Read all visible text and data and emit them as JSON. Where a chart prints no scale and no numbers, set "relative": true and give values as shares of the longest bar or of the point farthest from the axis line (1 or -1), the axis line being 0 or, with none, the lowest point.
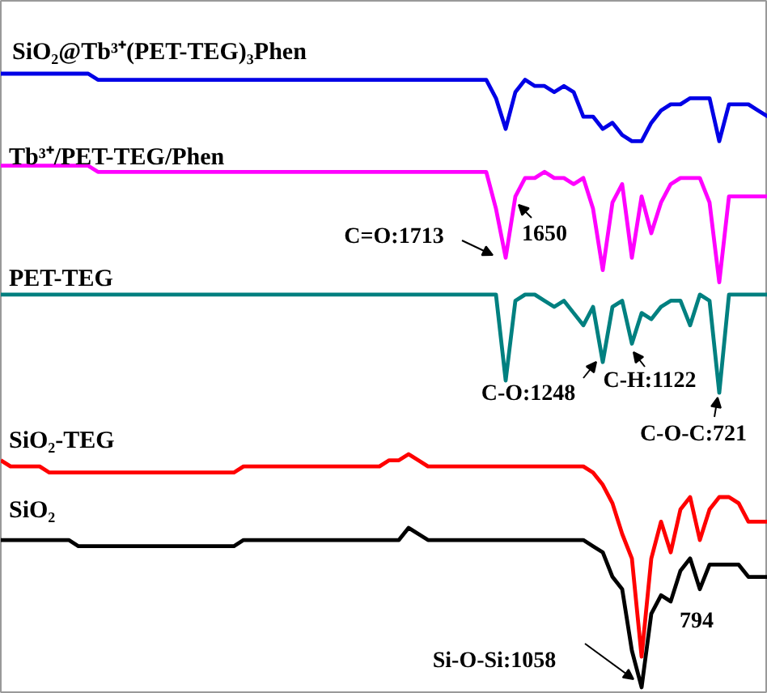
{
  "chart_data": {
    "type": "line",
    "relative": true,
    "grid": false,
    "marker": "none",
    "line_style": "solid",
    "categories": [
      null,
      null,
      null,
      null,
      null,
      null,
      null,
      null,
      null,
      null,
      null,
      null,
      null,
      null,
      null,
      null,
      null,
      null,
      null,
      null,
      null,
      null,
      null,
      null,
      null,
      null,
      null,
      null,
      null,
      null,
      null,
      null,
      null,
      null,
      null,
      null,
      null,
      null,
      null,
      null,
      null,
      null,
      null,
      null,
      null,
      null,
      null,
      null,
      null,
      null,
      null,
      null,
      null,
      null,
      null,
      null,
      null,
      null,
      null,
      null,
      null,
      null,
      null,
      null,
      null,
      null,
      null,
      null,
      null,
      null,
      null,
      null,
      null,
      null,
      null,
      null,
      null,
      null,
      null,
      null
    ],
    "series": [
      {
        "name": "SiO₂@Tb³⁺(PET-TEG)₃Phen",
        "color": "#0000e6",
        "values": [
          1.0,
          1.0,
          1.0,
          1.0,
          1.0,
          1.0,
          1.0,
          1.0,
          1.0,
          1.0,
          0.99,
          0.99,
          0.99,
          0.99,
          0.99,
          0.99,
          0.99,
          0.99,
          0.99,
          0.99,
          0.99,
          0.99,
          0.99,
          0.99,
          0.99,
          0.99,
          0.99,
          0.99,
          0.99,
          0.99,
          0.99,
          0.99,
          0.99,
          0.99,
          0.99,
          0.99,
          0.99,
          0.99,
          0.99,
          0.99,
          0.99,
          0.99,
          0.99,
          0.99,
          0.99,
          0.99,
          0.99,
          0.99,
          0.99,
          0.99,
          0.99,
          0.96,
          0.91,
          0.97,
          0.99,
          0.98,
          0.98,
          0.97,
          0.98,
          0.97,
          0.93,
          0.93,
          0.91,
          0.92,
          0.9,
          0.89,
          0.89,
          0.92,
          0.94,
          0.95,
          0.95,
          0.96,
          0.96,
          0.96,
          0.89,
          0.95,
          0.95,
          0.95,
          0.94,
          0.93
        ]
      },
      {
        "name": "Tb³⁺/PET-TEG/Phen",
        "color": "#ff00ff",
        "values": [
          0.85,
          0.85,
          0.85,
          0.85,
          0.85,
          0.85,
          0.85,
          0.85,
          0.85,
          0.85,
          0.84,
          0.84,
          0.84,
          0.84,
          0.84,
          0.84,
          0.84,
          0.84,
          0.84,
          0.84,
          0.84,
          0.84,
          0.84,
          0.84,
          0.84,
          0.84,
          0.84,
          0.84,
          0.84,
          0.84,
          0.84,
          0.84,
          0.84,
          0.84,
          0.84,
          0.84,
          0.84,
          0.84,
          0.84,
          0.84,
          0.84,
          0.84,
          0.84,
          0.84,
          0.84,
          0.84,
          0.84,
          0.84,
          0.84,
          0.84,
          0.84,
          0.78,
          0.7,
          0.8,
          0.83,
          0.83,
          0.84,
          0.83,
          0.83,
          0.82,
          0.83,
          0.78,
          0.68,
          0.79,
          0.82,
          0.7,
          0.8,
          0.74,
          0.79,
          0.82,
          0.83,
          0.83,
          0.83,
          0.79,
          0.66,
          0.8,
          0.8,
          0.8,
          0.8,
          0.8
        ]
      },
      {
        "name": "PET-TEG",
        "color": "#008080",
        "values": [
          0.64,
          0.64,
          0.64,
          0.64,
          0.64,
          0.64,
          0.64,
          0.64,
          0.64,
          0.64,
          0.64,
          0.64,
          0.64,
          0.64,
          0.64,
          0.64,
          0.64,
          0.64,
          0.64,
          0.64,
          0.64,
          0.64,
          0.64,
          0.64,
          0.64,
          0.64,
          0.64,
          0.64,
          0.64,
          0.64,
          0.64,
          0.64,
          0.64,
          0.64,
          0.64,
          0.64,
          0.64,
          0.64,
          0.64,
          0.64,
          0.64,
          0.64,
          0.64,
          0.64,
          0.64,
          0.64,
          0.64,
          0.64,
          0.64,
          0.64,
          0.64,
          0.64,
          0.5,
          0.63,
          0.64,
          0.64,
          0.63,
          0.62,
          0.63,
          0.61,
          0.59,
          0.62,
          0.53,
          0.62,
          0.63,
          0.56,
          0.61,
          0.6,
          0.62,
          0.63,
          0.63,
          0.59,
          0.64,
          0.63,
          0.48,
          0.64,
          0.64,
          0.64,
          0.64,
          0.64
        ]
      },
      {
        "name": "SiO₂-TEG",
        "color": "#ff0000",
        "values": [
          0.37,
          0.36,
          0.36,
          0.36,
          0.36,
          0.35,
          0.35,
          0.35,
          0.35,
          0.35,
          0.35,
          0.35,
          0.35,
          0.35,
          0.35,
          0.35,
          0.35,
          0.35,
          0.35,
          0.35,
          0.35,
          0.35,
          0.35,
          0.35,
          0.35,
          0.36,
          0.36,
          0.36,
          0.36,
          0.36,
          0.36,
          0.36,
          0.36,
          0.36,
          0.36,
          0.36,
          0.36,
          0.36,
          0.36,
          0.36,
          0.37,
          0.37,
          0.38,
          0.37,
          0.36,
          0.36,
          0.36,
          0.36,
          0.36,
          0.36,
          0.36,
          0.36,
          0.36,
          0.36,
          0.36,
          0.36,
          0.36,
          0.36,
          0.36,
          0.36,
          0.36,
          0.35,
          0.33,
          0.3,
          0.25,
          0.21,
          0.05,
          0.21,
          0.27,
          0.22,
          0.29,
          0.31,
          0.24,
          0.29,
          0.31,
          0.31,
          0.3,
          0.27,
          0.27,
          0.27
        ]
      },
      {
        "name": "SiO₂",
        "color": "#000000",
        "values": [
          0.24,
          0.24,
          0.24,
          0.24,
          0.24,
          0.24,
          0.24,
          0.24,
          0.23,
          0.23,
          0.23,
          0.23,
          0.23,
          0.23,
          0.23,
          0.23,
          0.23,
          0.23,
          0.23,
          0.23,
          0.23,
          0.23,
          0.23,
          0.23,
          0.23,
          0.24,
          0.24,
          0.24,
          0.24,
          0.24,
          0.24,
          0.24,
          0.24,
          0.24,
          0.24,
          0.24,
          0.24,
          0.24,
          0.24,
          0.24,
          0.24,
          0.24,
          0.26,
          0.25,
          0.24,
          0.24,
          0.24,
          0.24,
          0.24,
          0.24,
          0.24,
          0.24,
          0.24,
          0.24,
          0.24,
          0.24,
          0.24,
          0.24,
          0.24,
          0.24,
          0.24,
          0.23,
          0.22,
          0.18,
          0.16,
          0.06,
          0.0,
          0.12,
          0.15,
          0.14,
          0.19,
          0.21,
          0.16,
          0.2,
          0.2,
          0.2,
          0.2,
          0.18,
          0.18,
          0.18
        ]
      }
    ],
    "annotations": [
      "C=O:1713",
      "1650",
      "C-O:1248",
      "C-H:1122",
      "C-O-C:721",
      "Si-O-Si:1058",
      "794"
    ]
  }
}
